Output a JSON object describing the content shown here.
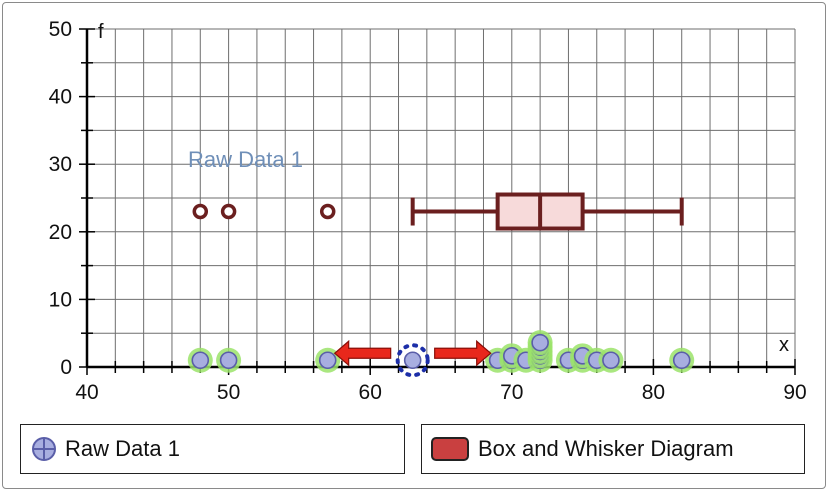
{
  "chart_data": {
    "type": "scatter",
    "xlabel": "x",
    "ylabel": "f",
    "xlim": [
      40,
      90
    ],
    "ylim": [
      0,
      50
    ],
    "xticks": [
      40,
      50,
      60,
      70,
      80,
      90
    ],
    "yticks": [
      0,
      10,
      20,
      30,
      40,
      50
    ],
    "x_minor_step": 2,
    "y_minor_step": 5,
    "grid": true,
    "series_label": "Raw Data 1",
    "dot_plot": [
      {
        "x": 48,
        "count": 1
      },
      {
        "x": 50,
        "count": 1
      },
      {
        "x": 57,
        "count": 1
      },
      {
        "x": 69,
        "count": 1
      },
      {
        "x": 70,
        "count": 2
      },
      {
        "x": 71,
        "count": 1
      },
      {
        "x": 72,
        "count": 5
      },
      {
        "x": 74,
        "count": 1
      },
      {
        "x": 75,
        "count": 2
      },
      {
        "x": 76,
        "count": 1
      },
      {
        "x": 77,
        "count": 1
      },
      {
        "x": 82,
        "count": 1
      }
    ],
    "selected_point": {
      "x": 63,
      "y": 1
    },
    "box_plot": {
      "y": 23,
      "whisker_low": 63,
      "q1": 69,
      "median": 72,
      "q3": 75,
      "whisker_high": 82,
      "outliers": [
        48,
        50,
        57
      ]
    },
    "legend_placement": "bottom",
    "colors": {
      "point_fill": "#a8aee0",
      "point_stroke": "#5a5ea8",
      "point_halo": "#9be36a",
      "box_stroke": "#6b1f1f",
      "box_fill": "#f7dada",
      "legend_box_fill": "#c94040",
      "series_label": "#6f8fb8",
      "arrow": "#e8281c",
      "selection": "#1c2ea8"
    }
  },
  "legend": {
    "raw_label": "Raw Data 1",
    "box_label": "Box and Whisker Diagram"
  }
}
